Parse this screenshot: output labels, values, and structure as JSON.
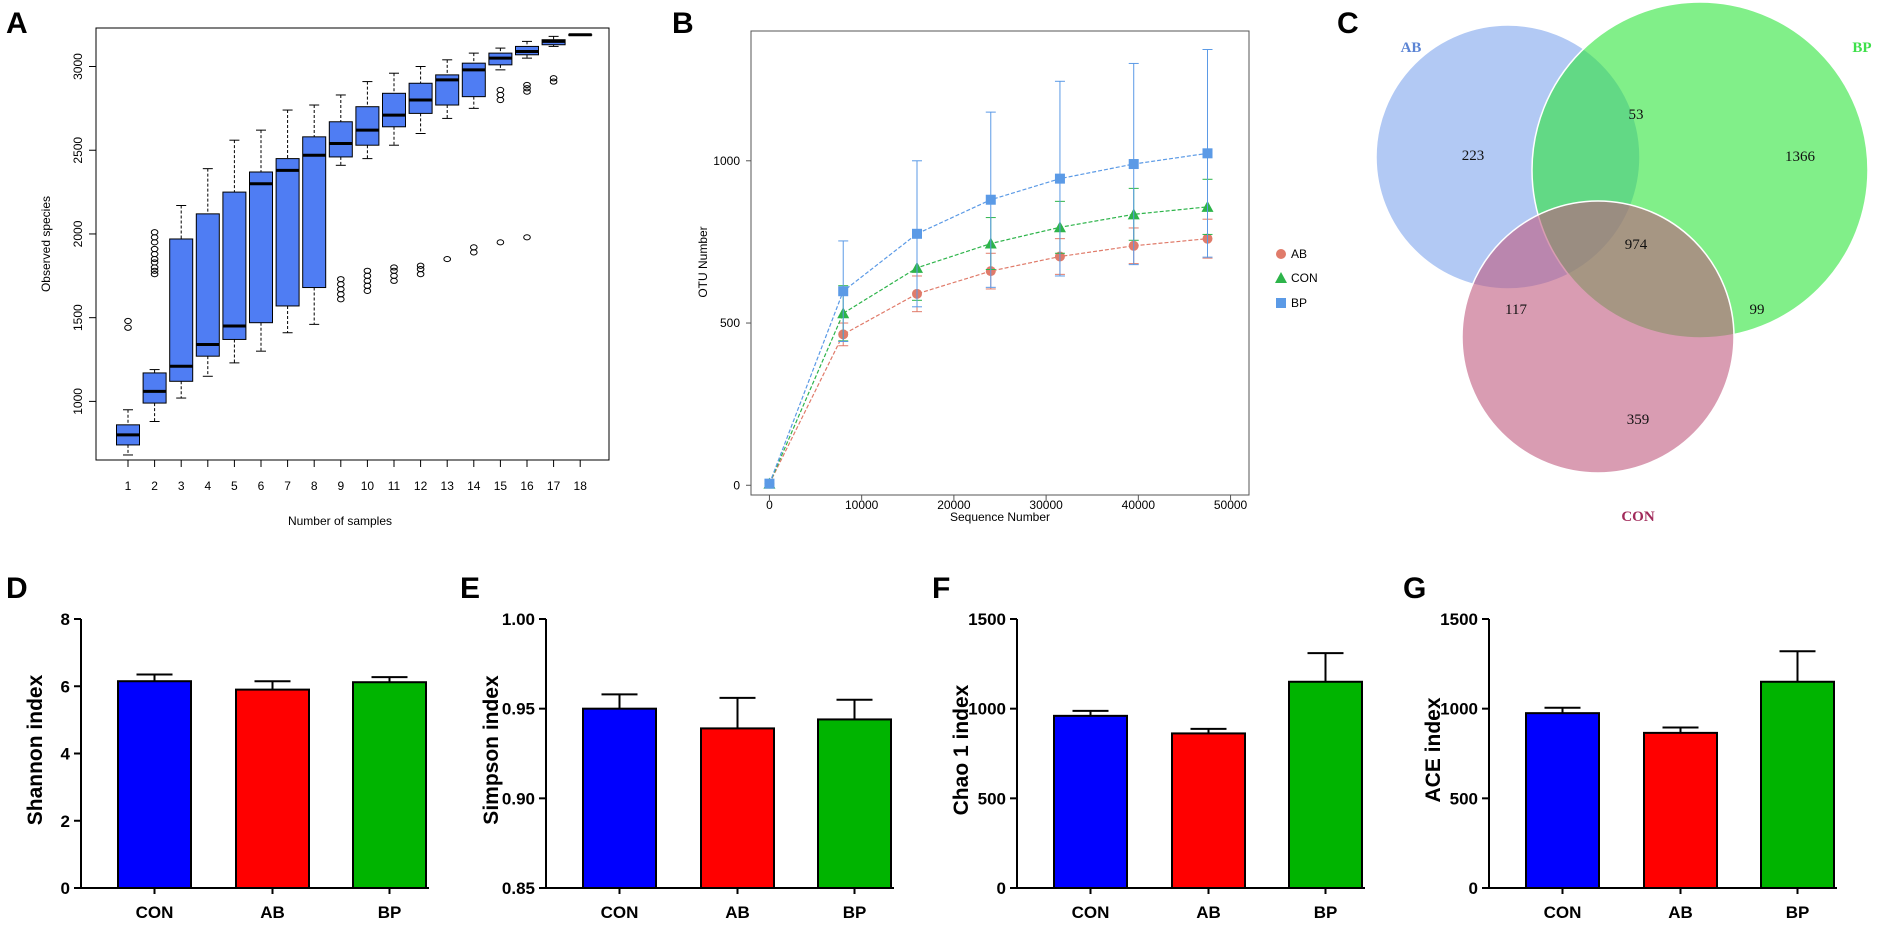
{
  "panel_labels": {
    "a": "A",
    "b": "B",
    "c": "C",
    "d": "D",
    "e": "E",
    "f": "F",
    "g": "G"
  },
  "colors": {
    "box": "#4f7df3",
    "ab_line": "#e07b6a",
    "con_line": "#2db44a",
    "bp_line": "#5b9ae6",
    "bar_con": "#0000ff",
    "bar_ab": "#ff0000",
    "bar_bp": "#00b400",
    "venn_ab": "#7ea5ec",
    "venn_bp": "#2de43a",
    "venn_con": "#c05a7e"
  },
  "chart_data": [
    {
      "id": "A",
      "type": "box",
      "xlabel": "Number of samples",
      "ylabel": "Observed species",
      "ylim": [
        650,
        3230
      ],
      "yticks": [
        "1000",
        "1500",
        "2000",
        "2500",
        "3000"
      ],
      "categories": [
        "1",
        "2",
        "3",
        "4",
        "5",
        "6",
        "7",
        "8",
        "9",
        "10",
        "11",
        "12",
        "13",
        "14",
        "15",
        "16",
        "17",
        "18"
      ],
      "boxes": [
        {
          "min": 680,
          "q1": 740,
          "median": 800,
          "q3": 860,
          "max": 950,
          "outliers": [
            1440,
            1480
          ]
        },
        {
          "min": 880,
          "q1": 990,
          "median": 1060,
          "q3": 1170,
          "max": 1190,
          "outliers": [
            1760,
            1780,
            1800,
            1830,
            1850,
            1880,
            1910,
            1950,
            1980,
            2010
          ]
        },
        {
          "min": 1020,
          "q1": 1120,
          "median": 1210,
          "q3": 1970,
          "max": 2170,
          "outliers": []
        },
        {
          "min": 1150,
          "q1": 1270,
          "median": 1340,
          "q3": 2120,
          "max": 2390,
          "outliers": []
        },
        {
          "min": 1230,
          "q1": 1370,
          "median": 1450,
          "q3": 2250,
          "max": 2560,
          "outliers": []
        },
        {
          "min": 1300,
          "q1": 1470,
          "median": 2300,
          "q3": 2370,
          "max": 2620,
          "outliers": []
        },
        {
          "min": 1410,
          "q1": 1570,
          "median": 2380,
          "q3": 2450,
          "max": 2740,
          "outliers": []
        },
        {
          "min": 1460,
          "q1": 1680,
          "median": 2470,
          "q3": 2580,
          "max": 2770,
          "outliers": []
        },
        {
          "min": 2410,
          "q1": 2460,
          "median": 2540,
          "q3": 2670,
          "max": 2830,
          "outliers": [
            1610,
            1640,
            1670,
            1700,
            1730
          ]
        },
        {
          "min": 2450,
          "q1": 2530,
          "median": 2620,
          "q3": 2760,
          "max": 2910,
          "outliers": [
            1660,
            1690,
            1720,
            1750,
            1780
          ]
        },
        {
          "min": 2530,
          "q1": 2640,
          "median": 2710,
          "q3": 2840,
          "max": 2960,
          "outliers": [
            1720,
            1750,
            1780,
            1800
          ]
        },
        {
          "min": 2600,
          "q1": 2720,
          "median": 2800,
          "q3": 2900,
          "max": 3000,
          "outliers": [
            1760,
            1790,
            1810
          ]
        },
        {
          "min": 2690,
          "q1": 2770,
          "median": 2920,
          "q3": 2950,
          "max": 3040,
          "outliers": [
            1850
          ]
        },
        {
          "min": 2750,
          "q1": 2820,
          "median": 2980,
          "q3": 3020,
          "max": 3080,
          "outliers": [
            1890,
            1920
          ]
        },
        {
          "min": 2980,
          "q1": 3010,
          "median": 3050,
          "q3": 3080,
          "max": 3110,
          "outliers": [
            1950,
            2800,
            2830,
            2860
          ]
        },
        {
          "min": 3050,
          "q1": 3070,
          "median": 3090,
          "q3": 3120,
          "max": 3150,
          "outliers": [
            1980,
            2850,
            2870,
            2890
          ]
        },
        {
          "min": 3120,
          "q1": 3130,
          "median": 3150,
          "q3": 3160,
          "max": 3180,
          "outliers": [
            2910,
            2930
          ]
        },
        {
          "min": 3190,
          "q1": 3190,
          "median": 3190,
          "q3": 3190,
          "max": 3190,
          "outliers": []
        }
      ]
    },
    {
      "id": "B",
      "type": "line",
      "xlabel": "Sequence Number",
      "ylabel": "OTU Number",
      "xlim": [
        -2000,
        52000
      ],
      "ylim": [
        -30,
        1400
      ],
      "xticks": [
        0,
        10000,
        20000,
        30000,
        40000,
        50000
      ],
      "xtick_labels": [
        "0",
        "10000",
        "20000",
        "30000",
        "40000",
        "50000"
      ],
      "yticks": [
        0,
        500,
        1000
      ],
      "ytick_labels": [
        "0",
        "500",
        "1000"
      ],
      "x": [
        0,
        8000,
        16000,
        24000,
        31500,
        39500,
        47500
      ],
      "series": [
        {
          "name": "AB",
          "marker": "circle",
          "values": [
            5,
            465,
            590,
            660,
            705,
            738,
            760
          ],
          "errors": [
            0,
            35,
            55,
            55,
            55,
            55,
            60
          ]
        },
        {
          "name": "CON",
          "marker": "triangle",
          "values": [
            5,
            530,
            670,
            745,
            795,
            835,
            858
          ],
          "errors": [
            0,
            85,
            100,
            80,
            80,
            80,
            85
          ]
        },
        {
          "name": "BP",
          "marker": "square",
          "values": [
            5,
            598,
            775,
            880,
            945,
            990,
            1023
          ],
          "errors": [
            0,
            155,
            225,
            270,
            300,
            310,
            320
          ]
        }
      ]
    },
    {
      "id": "C",
      "type": "venn",
      "sets": [
        "AB",
        "BP",
        "CON"
      ],
      "regions": {
        "ab_only": "223",
        "bp_only": "1366",
        "con_only": "359",
        "ab_bp": "53",
        "ab_con": "117",
        "bp_con": "99",
        "all": "974"
      }
    },
    {
      "id": "D",
      "type": "bar",
      "ylabel": "Shannon index",
      "categories": [
        "CON",
        "AB",
        "BP"
      ],
      "ylim": [
        0,
        8
      ],
      "yticks": [
        0,
        2,
        4,
        6,
        8
      ],
      "ytick_labels": [
        "0",
        "2",
        "4",
        "6",
        "8"
      ],
      "values": [
        6.15,
        5.9,
        6.12
      ],
      "errors": [
        0.2,
        0.25,
        0.15
      ]
    },
    {
      "id": "E",
      "type": "bar",
      "ylabel": "Simpson index",
      "categories": [
        "CON",
        "AB",
        "BP"
      ],
      "ylim": [
        0.85,
        1.0
      ],
      "yticks": [
        0.85,
        0.9,
        0.95,
        1.0
      ],
      "ytick_labels": [
        "0.85",
        "0.90",
        "0.95",
        "1.00"
      ],
      "values": [
        0.95,
        0.939,
        0.944
      ],
      "errors": [
        0.008,
        0.017,
        0.011
      ]
    },
    {
      "id": "F",
      "type": "bar",
      "ylabel": "Chao 1 index",
      "categories": [
        "CON",
        "AB",
        "BP"
      ],
      "ylim": [
        0,
        1500
      ],
      "yticks": [
        0,
        500,
        1000,
        1500
      ],
      "ytick_labels": [
        "0",
        "500",
        "1000",
        "1500"
      ],
      "values": [
        960,
        862,
        1150
      ],
      "errors": [
        28,
        25,
        160
      ]
    },
    {
      "id": "G",
      "type": "bar",
      "ylabel": "ACE index",
      "categories": [
        "CON",
        "AB",
        "BP"
      ],
      "ylim": [
        0,
        1500
      ],
      "yticks": [
        0,
        500,
        1000,
        1500
      ],
      "ytick_labels": [
        "0",
        "500",
        "1000",
        "1500"
      ],
      "values": [
        975,
        865,
        1150
      ],
      "errors": [
        30,
        30,
        170
      ]
    }
  ]
}
